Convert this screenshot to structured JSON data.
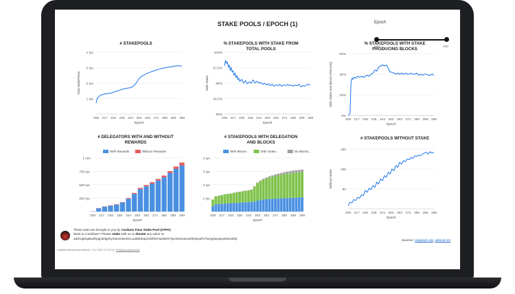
{
  "page": {
    "title": "STAKE POOLS / EPOCH (1)"
  },
  "epoch_control": {
    "label": "Epoch",
    "min": "208",
    "max": "298",
    "range": [
      208,
      298
    ]
  },
  "footer": {
    "line1_pre": "These stats are brought to you by ",
    "line1_bold": "Cardano Fans Stake Pool (CFPA)",
    "line2_pre": "Want to contribute? Please ",
    "line2_b1": "stake",
    "line2_mid": " with us or ",
    "line2_b2": "donate",
    "line2_post": " any value to:",
    "address": "addr1q8ng8wdfrpqj4t2lg4hym5rxm5240ccuak9k3epr2xl3fz57aedekh7syvs5z2usuxwf6ukyazhr7w4yj4qxapuxkksnwfdj",
    "sources_label": "Sources:",
    "source1": "adapools.org",
    "source_sep": ", ",
    "source2": "adastat.net",
    "updated": "Ostatnia aktualizacja danych: 3.11.2021 17:30:00",
    "privacy": "Polityka prywatności",
    "updated_sep": " | "
  },
  "chart_data": [
    {
      "id": "stakepools",
      "type": "line",
      "title": "# STAKEPOOLS",
      "ylabel": "Total StakePools",
      "xlabel": "Epoch",
      "y_ticks": [
        "1 tys.",
        "2 tys.",
        "3 tys.",
        "4 tys."
      ],
      "ylim": [
        0,
        4000
      ],
      "x_ticks": [
        "208",
        "217",
        "226",
        "235",
        "244",
        "253",
        "262",
        "271",
        "280",
        "289",
        "298"
      ],
      "xlim": [
        208,
        298
      ],
      "series": [
        {
          "color": "#1a73e8",
          "x": [
            208,
            209,
            211,
            214,
            217,
            220,
            223,
            226,
            229,
            232,
            235,
            238,
            241,
            244,
            247,
            250,
            253,
            256,
            259,
            262,
            265,
            268,
            271,
            274,
            277,
            280,
            283,
            286,
            289,
            292,
            295,
            298
          ],
          "y": [
            700,
            1000,
            1150,
            1250,
            1300,
            1320,
            1350,
            1400,
            1480,
            1520,
            1600,
            1640,
            1680,
            1700,
            1800,
            2000,
            2300,
            2450,
            2560,
            2650,
            2720,
            2780,
            2850,
            2900,
            2950,
            2990,
            3020,
            3060,
            3090,
            3110,
            3130,
            3100
          ]
        }
      ]
    },
    {
      "id": "pct_with_stake",
      "type": "line",
      "title": "% STAKEPOOLS WITH STAKE FROM TOTAL POOLS",
      "ylabel": "With Stake",
      "xlabel": "Epoch",
      "y_ticks": [
        "90%",
        "92,5%",
        "95%",
        "97,5%",
        "100%"
      ],
      "ylim": [
        90,
        100
      ],
      "x_ticks": [
        "208",
        "217",
        "226",
        "235",
        "244",
        "253",
        "262",
        "271",
        "280",
        "289",
        "298"
      ],
      "xlim": [
        208,
        298
      ],
      "series": [
        {
          "color": "#1a73e8",
          "x": [
            208,
            209,
            210,
            211,
            212,
            213,
            214,
            215,
            216,
            217,
            218,
            219,
            220,
            221,
            222,
            223,
            224,
            226,
            228,
            230,
            232,
            234,
            236,
            238,
            240,
            242,
            244,
            246,
            248,
            250,
            252,
            254,
            256,
            258,
            260,
            262,
            264,
            266,
            268,
            270,
            272,
            274,
            276,
            278,
            280,
            282,
            284,
            286,
            288,
            290,
            292,
            294,
            296,
            298
          ],
          "y": [
            97.8,
            98.7,
            98.2,
            98.4,
            97.6,
            97.9,
            97.1,
            97.5,
            96.8,
            97.0,
            96.3,
            96.6,
            95.9,
            96.2,
            95.6,
            95.8,
            95.3,
            95.6,
            95.0,
            95.4,
            94.9,
            95.2,
            95.0,
            95.5,
            95.0,
            95.3,
            95.0,
            95.1,
            94.8,
            95.0,
            94.7,
            94.9,
            94.6,
            94.8,
            94.5,
            94.7,
            94.6,
            94.8,
            94.5,
            94.7,
            94.6,
            94.8,
            94.6,
            94.7,
            94.5,
            94.7,
            94.6,
            94.8,
            94.4,
            94.6,
            94.5,
            94.7,
            94.8,
            94.7
          ]
        }
      ]
    },
    {
      "id": "pct_producing",
      "type": "line",
      "title": "% STAKEPOOLS WITH STAKE PRODUCING BLOCKS",
      "ylabel": "With Stake and Blocks (Percent)",
      "xlabel": "Epoch",
      "y_ticks": [
        "0%",
        "20%",
        "40%",
        "60%"
      ],
      "ylim": [
        0,
        60
      ],
      "x_ticks": [
        "208",
        "217",
        "226",
        "235",
        "244",
        "253",
        "262",
        "271",
        "280",
        "289",
        "298"
      ],
      "xlim": [
        208,
        298
      ],
      "series": [
        {
          "color": "#1a73e8",
          "x": [
            208,
            210,
            211,
            212,
            213,
            214,
            216,
            218,
            220,
            222,
            224,
            226,
            228,
            230,
            232,
            234,
            236,
            238,
            240,
            242,
            244,
            246,
            248,
            250,
            252,
            254,
            256,
            258,
            260,
            262,
            264,
            266,
            268,
            270,
            272,
            274,
            276,
            278,
            280,
            282,
            284,
            286,
            288,
            290,
            292,
            294,
            296,
            298
          ],
          "y": [
            0,
            2,
            32,
            36,
            35,
            37,
            36,
            38,
            37,
            38,
            37,
            38,
            39,
            38,
            40,
            41,
            44,
            43,
            47,
            48,
            49,
            48,
            49,
            46,
            42,
            42,
            41,
            40,
            41,
            40,
            41,
            40,
            41,
            40,
            40,
            41,
            40,
            40,
            41,
            39,
            40,
            39,
            40,
            40,
            39,
            39,
            40,
            39
          ]
        }
      ]
    },
    {
      "id": "delegators",
      "type": "area",
      "stacked": true,
      "title": "# DELEGATORS WITH AND WITHOUT REWARDS",
      "xlabel": "Epoch",
      "y_ticks": [
        "250 tys.",
        "500 tys.",
        "750 tys.",
        "1 mln"
      ],
      "ylim": [
        0,
        1000000
      ],
      "x_ticks": [
        "208",
        "217",
        "226",
        "235",
        "244",
        "253",
        "262",
        "271",
        "280",
        "289",
        "298"
      ],
      "xlim": [
        208,
        298
      ],
      "x": [
        208,
        214,
        220,
        226,
        232,
        238,
        244,
        250,
        256,
        262,
        268,
        274,
        280,
        286,
        292,
        298
      ],
      "series": [
        {
          "name": "With Rewards",
          "color": "#4a90e2",
          "values": [
            5000,
            60000,
            90000,
            110000,
            130000,
            170000,
            240000,
            330000,
            420000,
            470000,
            520000,
            580000,
            640000,
            720000,
            800000,
            860000
          ]
        },
        {
          "name": "Without Rewards",
          "color": "#e35d5b",
          "values": [
            0,
            5000,
            6000,
            6000,
            7000,
            8000,
            12000,
            18000,
            22000,
            25000,
            28000,
            30000,
            32000,
            35000,
            40000,
            55000
          ]
        }
      ]
    },
    {
      "id": "delegation_blocks",
      "type": "area",
      "stacked": true,
      "title": "# STAKEPOOLS WITH DELEGATION AND BLOCKS",
      "xlabel": "Epoch",
      "y_ticks": [
        "1 tys.",
        "2 tys.",
        "3 tys.",
        "4 tys."
      ],
      "ylim": [
        0,
        4000
      ],
      "x_ticks": [
        "208",
        "217",
        "226",
        "235",
        "244",
        "253",
        "262",
        "271",
        "280",
        "289",
        "298"
      ],
      "xlim": [
        208,
        298
      ],
      "x": [
        208,
        211,
        214,
        217,
        220,
        223,
        226,
        229,
        232,
        235,
        238,
        241,
        244,
        247,
        250,
        253,
        256,
        259,
        262,
        265,
        268,
        271,
        274,
        277,
        280,
        283,
        286,
        289,
        292,
        295,
        298
      ],
      "series": [
        {
          "name": "With Blocks",
          "color": "#4a90e2",
          "values": [
            400,
            550,
            560,
            580,
            600,
            610,
            620,
            640,
            650,
            660,
            680,
            690,
            700,
            720,
            760,
            820,
            860,
            900,
            920,
            940,
            950,
            960,
            980,
            990,
            1000,
            1010,
            1020,
            1030,
            1040,
            1050,
            1060
          ]
        },
        {
          "name": "With Stake...",
          "color": "#7ec24a",
          "values": [
            500,
            580,
            620,
            650,
            680,
            700,
            720,
            760,
            790,
            800,
            830,
            850,
            870,
            900,
            1100,
            1300,
            1400,
            1480,
            1540,
            1600,
            1650,
            1700,
            1730,
            1760,
            1790,
            1820,
            1840,
            1860,
            1870,
            1880,
            1890
          ]
        },
        {
          "name": "No Blocks...",
          "color": "#a0a0a0",
          "values": [
            0,
            10,
            10,
            10,
            10,
            10,
            10,
            10,
            20,
            20,
            20,
            20,
            30,
            30,
            40,
            50,
            60,
            70,
            80,
            90,
            100,
            110,
            120,
            130,
            140,
            150,
            160,
            170,
            170,
            180,
            180
          ]
        }
      ]
    },
    {
      "id": "without_stake",
      "type": "line",
      "title": "# STAKEPOOLS WITHOUT STAKE",
      "ylabel": "Without Stake",
      "xlabel": "Epoch",
      "y_ticks": [
        "50",
        "100",
        "150"
      ],
      "ylim": [
        0,
        180
      ],
      "x_ticks": [
        "208",
        "217",
        "226",
        "235",
        "244",
        "253",
        "262",
        "271",
        "280",
        "289",
        "298"
      ],
      "xlim": [
        208,
        298
      ],
      "series": [
        {
          "color": "#1a73e8",
          "x": [
            208,
            210,
            212,
            214,
            216,
            218,
            220,
            222,
            224,
            226,
            228,
            230,
            232,
            234,
            236,
            238,
            240,
            242,
            244,
            246,
            248,
            250,
            252,
            254,
            256,
            258,
            260,
            262,
            264,
            266,
            268,
            270,
            272,
            274,
            276,
            278,
            280,
            282,
            284,
            286,
            288,
            290,
            292,
            294,
            296,
            298
          ],
          "y": [
            10,
            20,
            18,
            28,
            25,
            35,
            32,
            42,
            40,
            55,
            50,
            62,
            58,
            70,
            65,
            80,
            75,
            90,
            85,
            100,
            95,
            110,
            105,
            120,
            115,
            130,
            125,
            140,
            135,
            145,
            142,
            150,
            148,
            155,
            152,
            160,
            158,
            162,
            160,
            165,
            168,
            170,
            165,
            172,
            168,
            170
          ]
        }
      ]
    }
  ]
}
